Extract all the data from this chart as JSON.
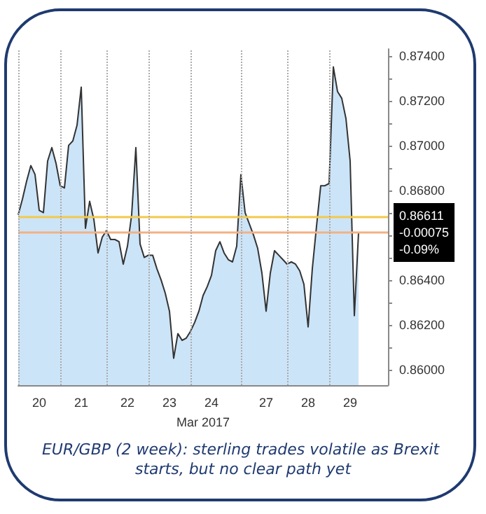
{
  "chart_data": {
    "type": "area",
    "title": "EUR/GBP (2 week): sterling trades volatile as Brexit starts, but no clear path yet",
    "xlabel": "Mar 2017",
    "categories": [
      null,
      null,
      null,
      null,
      null,
      "20",
      null,
      null,
      null,
      null,
      null,
      null,
      null,
      null,
      null,
      "21",
      null,
      null,
      null,
      null,
      null,
      null,
      null,
      null,
      null,
      null,
      "22",
      null,
      null,
      null,
      null,
      null,
      null,
      null,
      null,
      null,
      "23",
      null,
      null,
      null,
      null,
      null,
      null,
      null,
      null,
      null,
      "24",
      null,
      null,
      null,
      null,
      null,
      null,
      null,
      null,
      null,
      null,
      null,
      null,
      "27",
      null,
      null,
      null,
      null,
      null,
      null,
      null,
      null,
      null,
      "28",
      null,
      null,
      null,
      null,
      null,
      null,
      null,
      null,
      null,
      "29",
      null,
      null,
      null,
      null,
      null,
      null,
      null,
      null,
      null
    ],
    "series": [
      {
        "color": "#333333",
        "values": [
          0.8669,
          0.8676,
          0.8684,
          0.8691,
          0.8687,
          0.8671,
          0.867,
          0.8693,
          0.8699,
          0.8692,
          0.8682,
          0.8681,
          0.87,
          0.8702,
          0.8709,
          0.8726,
          0.8663,
          0.8675,
          0.8667,
          0.8652,
          0.8659,
          0.8662,
          0.8658,
          0.8658,
          0.8657,
          0.8647,
          0.8655,
          0.8669,
          0.8699,
          0.8656,
          0.865,
          0.8651,
          0.8651,
          0.8645,
          0.864,
          0.8634,
          0.8626,
          0.8605,
          0.8616,
          0.8613,
          0.8614,
          0.8617,
          0.8621,
          0.8626,
          0.8633,
          0.8637,
          0.8642,
          0.8653,
          0.8657,
          0.8652,
          0.8649,
          0.8648,
          0.8655,
          0.8687,
          0.867,
          0.8665,
          0.866,
          0.8654,
          0.8643,
          0.8626,
          0.8643,
          0.8653,
          0.8651,
          0.8649,
          0.8647,
          0.8648,
          0.8647,
          0.8644,
          0.8638,
          0.8619,
          0.8645,
          0.8664,
          0.8682,
          0.8682,
          0.8683,
          0.8735,
          0.8724,
          0.8721,
          0.8712,
          0.8693,
          0.8624,
          0.8661,
          null,
          null,
          null,
          null,
          null,
          null,
          null
        ]
      }
    ],
    "ylim": [
      0.8593,
      0.8743
    ],
    "yticks": [
      {
        "value": 0.86,
        "label": "0.86000"
      },
      {
        "value": 0.861,
        "label": null
      },
      {
        "value": 0.862,
        "label": "0.86200"
      },
      {
        "value": 0.863,
        "label": null
      },
      {
        "value": 0.864,
        "label": "0.86400"
      },
      {
        "value": 0.865,
        "label": null
      },
      {
        "value": 0.866,
        "label": null
      },
      {
        "value": 0.867,
        "label": null
      },
      {
        "value": 0.868,
        "label": "0.86800"
      },
      {
        "value": 0.869,
        "label": null
      },
      {
        "value": 0.87,
        "label": "0.87000"
      },
      {
        "value": 0.871,
        "label": null
      },
      {
        "value": 0.872,
        "label": "0.87200"
      },
      {
        "value": 0.873,
        "label": null
      },
      {
        "value": 0.874,
        "label": "0.87400"
      }
    ],
    "grid": "x",
    "ref_lines": [
      {
        "axis": "y",
        "value": 0.8668,
        "color": "#f2c94c"
      },
      {
        "axis": "y",
        "value": 0.86611,
        "color": "#f4b183",
        "label": "0.86611\n-0.00075\n-0.09%"
      }
    ]
  }
}
